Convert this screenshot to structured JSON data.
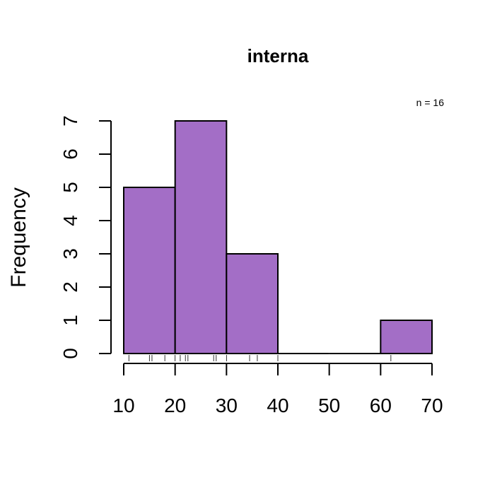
{
  "chart_data": {
    "type": "bar",
    "title": "interna",
    "note": "n = 16",
    "xlabel": "",
    "ylabel": "Frequency",
    "bins": [
      [
        10,
        20
      ],
      [
        20,
        30
      ],
      [
        30,
        40
      ],
      [
        40,
        50
      ],
      [
        50,
        60
      ],
      [
        60,
        70
      ]
    ],
    "values": [
      5,
      7,
      3,
      0,
      0,
      1
    ],
    "xlim": [
      10,
      70
    ],
    "ylim": [
      0,
      7
    ],
    "x_ticks": [
      "10",
      "20",
      "30",
      "40",
      "50",
      "60",
      "70"
    ],
    "y_ticks": [
      "0",
      "1",
      "2",
      "3",
      "4",
      "5",
      "6",
      "7"
    ],
    "rug": [
      11,
      15,
      15.5,
      18,
      20,
      21,
      22,
      22.5,
      27.5,
      28,
      30,
      34.5,
      36,
      40,
      62
    ],
    "bar_color": "#a36ec6",
    "grid": false
  }
}
